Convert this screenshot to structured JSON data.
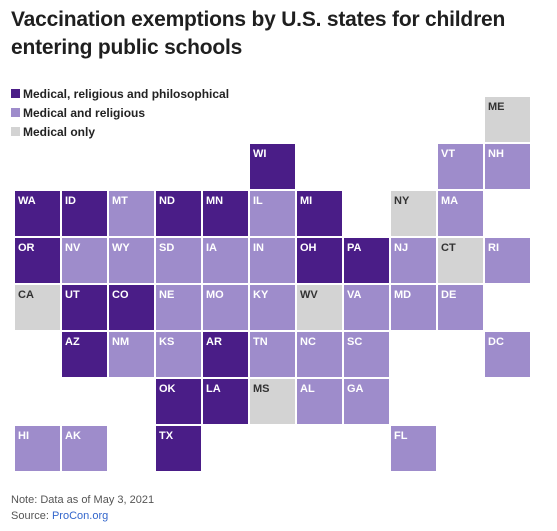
{
  "title": "Vaccination exemptions by U.S. states for children entering public schools",
  "legend": [
    {
      "key": "mrp",
      "label": "Medical, religious and philosophical",
      "color": "#4a1d87"
    },
    {
      "key": "mr",
      "label": "Medical and religious",
      "color": "#9e8ccb"
    },
    {
      "key": "m",
      "label": "Medical only",
      "color": "#d3d3d3"
    }
  ],
  "colors": {
    "mrp": "#4a1d87",
    "mr": "#9e8ccb",
    "m": "#d3d3d3"
  },
  "states": [
    {
      "abbr": "ME",
      "row": 0,
      "col": 10,
      "type": "m"
    },
    {
      "abbr": "WI",
      "row": 1,
      "col": 5,
      "type": "mrp"
    },
    {
      "abbr": "VT",
      "row": 1,
      "col": 9,
      "type": "mr"
    },
    {
      "abbr": "NH",
      "row": 1,
      "col": 10,
      "type": "mr"
    },
    {
      "abbr": "WA",
      "row": 2,
      "col": 0,
      "type": "mrp"
    },
    {
      "abbr": "ID",
      "row": 2,
      "col": 1,
      "type": "mrp"
    },
    {
      "abbr": "MT",
      "row": 2,
      "col": 2,
      "type": "mr"
    },
    {
      "abbr": "ND",
      "row": 2,
      "col": 3,
      "type": "mrp"
    },
    {
      "abbr": "MN",
      "row": 2,
      "col": 4,
      "type": "mrp"
    },
    {
      "abbr": "IL",
      "row": 2,
      "col": 5,
      "type": "mr"
    },
    {
      "abbr": "MI",
      "row": 2,
      "col": 6,
      "type": "mrp"
    },
    {
      "abbr": "NY",
      "row": 2,
      "col": 8,
      "type": "m"
    },
    {
      "abbr": "MA",
      "row": 2,
      "col": 9,
      "type": "mr"
    },
    {
      "abbr": "OR",
      "row": 3,
      "col": 0,
      "type": "mrp"
    },
    {
      "abbr": "NV",
      "row": 3,
      "col": 1,
      "type": "mr"
    },
    {
      "abbr": "WY",
      "row": 3,
      "col": 2,
      "type": "mr"
    },
    {
      "abbr": "SD",
      "row": 3,
      "col": 3,
      "type": "mr"
    },
    {
      "abbr": "IA",
      "row": 3,
      "col": 4,
      "type": "mr"
    },
    {
      "abbr": "IN",
      "row": 3,
      "col": 5,
      "type": "mr"
    },
    {
      "abbr": "OH",
      "row": 3,
      "col": 6,
      "type": "mrp"
    },
    {
      "abbr": "PA",
      "row": 3,
      "col": 7,
      "type": "mrp"
    },
    {
      "abbr": "NJ",
      "row": 3,
      "col": 8,
      "type": "mr"
    },
    {
      "abbr": "CT",
      "row": 3,
      "col": 9,
      "type": "m"
    },
    {
      "abbr": "RI",
      "row": 3,
      "col": 10,
      "type": "mr"
    },
    {
      "abbr": "CA",
      "row": 4,
      "col": 0,
      "type": "m"
    },
    {
      "abbr": "UT",
      "row": 4,
      "col": 1,
      "type": "mrp"
    },
    {
      "abbr": "CO",
      "row": 4,
      "col": 2,
      "type": "mrp"
    },
    {
      "abbr": "NE",
      "row": 4,
      "col": 3,
      "type": "mr"
    },
    {
      "abbr": "MO",
      "row": 4,
      "col": 4,
      "type": "mr"
    },
    {
      "abbr": "KY",
      "row": 4,
      "col": 5,
      "type": "mr"
    },
    {
      "abbr": "WV",
      "row": 4,
      "col": 6,
      "type": "m"
    },
    {
      "abbr": "VA",
      "row": 4,
      "col": 7,
      "type": "mr"
    },
    {
      "abbr": "MD",
      "row": 4,
      "col": 8,
      "type": "mr"
    },
    {
      "abbr": "DE",
      "row": 4,
      "col": 9,
      "type": "mr"
    },
    {
      "abbr": "AZ",
      "row": 5,
      "col": 1,
      "type": "mrp"
    },
    {
      "abbr": "NM",
      "row": 5,
      "col": 2,
      "type": "mr"
    },
    {
      "abbr": "KS",
      "row": 5,
      "col": 3,
      "type": "mr"
    },
    {
      "abbr": "AR",
      "row": 5,
      "col": 4,
      "type": "mrp"
    },
    {
      "abbr": "TN",
      "row": 5,
      "col": 5,
      "type": "mr"
    },
    {
      "abbr": "NC",
      "row": 5,
      "col": 6,
      "type": "mr"
    },
    {
      "abbr": "SC",
      "row": 5,
      "col": 7,
      "type": "mr"
    },
    {
      "abbr": "DC",
      "row": 5,
      "col": 10,
      "type": "mr"
    },
    {
      "abbr": "OK",
      "row": 6,
      "col": 3,
      "type": "mrp"
    },
    {
      "abbr": "LA",
      "row": 6,
      "col": 4,
      "type": "mrp"
    },
    {
      "abbr": "MS",
      "row": 6,
      "col": 5,
      "type": "m"
    },
    {
      "abbr": "AL",
      "row": 6,
      "col": 6,
      "type": "mr"
    },
    {
      "abbr": "GA",
      "row": 6,
      "col": 7,
      "type": "mr"
    },
    {
      "abbr": "HI",
      "row": 7,
      "col": 0,
      "type": "mr"
    },
    {
      "abbr": "AK",
      "row": 7,
      "col": 1,
      "type": "mr"
    },
    {
      "abbr": "TX",
      "row": 7,
      "col": 3,
      "type": "mrp"
    },
    {
      "abbr": "FL",
      "row": 7,
      "col": 8,
      "type": "mr"
    }
  ],
  "footer": {
    "note": "Note: Data as of May 3, 2021",
    "source_label": "Source: ",
    "source_link": "ProCon.org"
  }
}
